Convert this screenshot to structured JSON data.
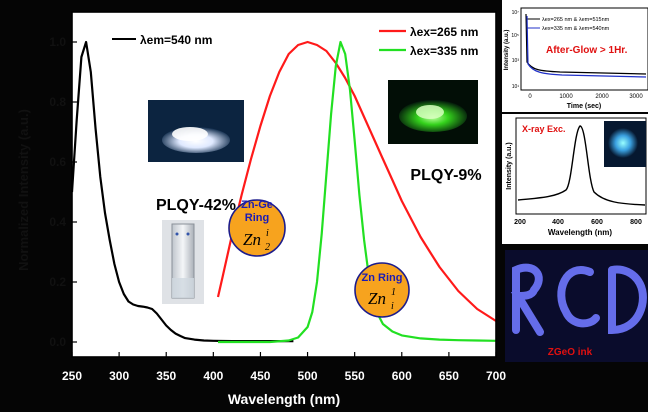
{
  "colors": {
    "frame": "#050505",
    "plot_bg": "#ffffff",
    "black_series": "#000000",
    "red_series": "#ff1a1a",
    "green_series": "#22e022",
    "circle_fill": "#f7a31e",
    "label_blue": "#1c1cb4",
    "afterglow_red": "#e01010",
    "xray_bg": "#1a66c8"
  },
  "icons": {
    "sample_photo_left": "white-powder-photo",
    "sample_photo_right": "green-powder-photo",
    "cuvette_photo": "cuvette-photo",
    "ink_photo": "blue-ink-letters-photo",
    "xray_glow": "blue-glow-photo"
  },
  "main": {
    "annotations": {
      "plqy_left": "PLQY-42%",
      "plqy_right": "PLQY-9%",
      "znge_line1": "Zn-Ge",
      "znge_line2": "Ring",
      "zn_ring": "Zn Ring"
    },
    "legend": {
      "black": "λem=540 nm",
      "red": "λex=265 nm",
      "green": "λex=335 nm"
    }
  },
  "inset_afterglow": {
    "legend": [
      "λex=265 nm & λem=515nm",
      "λex=335 nm & λem=540nm"
    ],
    "annotation": "After-Glow > 1Hr.",
    "ylabel": "Intensity (a.u.)",
    "xlabel": "Time (sec)",
    "xticks": [
      "0",
      "1000",
      "2000",
      "3000"
    ],
    "yticks": [
      "10⁷",
      "10⁵",
      "10³",
      "10¹"
    ]
  },
  "inset_xray": {
    "annotation": "X-ray Exc.",
    "ylabel": "Intensity (a.u.)",
    "xlabel": "Wavelength (nm)",
    "xticks": [
      "200",
      "400",
      "600",
      "800"
    ]
  },
  "inset_ink": {
    "caption": "ZGeO ink"
  },
  "chart_data": {
    "type": "line",
    "xlabel": "Wavelength (nm)",
    "ylabel": "Normalized Intensity (a.u.)",
    "xlim": [
      250,
      700
    ],
    "ylim": [
      -0.05,
      1.1
    ],
    "xticks": [
      250,
      300,
      350,
      400,
      450,
      500,
      550,
      600,
      650,
      700
    ],
    "yticks": [
      0.0,
      0.2,
      0.4,
      0.6,
      0.8,
      1.0
    ],
    "grid": false,
    "legend_placement": "top",
    "series": [
      {
        "name": "λem=540 nm",
        "color": "#000000",
        "x": [
          250,
          255,
          260,
          265,
          270,
          275,
          280,
          285,
          290,
          295,
          300,
          305,
          310,
          315,
          320,
          325,
          330,
          335,
          340,
          345,
          350,
          355,
          360,
          365,
          370,
          380,
          390,
          400,
          420,
          440,
          460,
          480,
          485
        ],
        "y": [
          0.5,
          0.74,
          0.95,
          1.0,
          0.9,
          0.71,
          0.55,
          0.43,
          0.34,
          0.26,
          0.2,
          0.16,
          0.135,
          0.125,
          0.12,
          0.118,
          0.115,
          0.11,
          0.095,
          0.075,
          0.055,
          0.04,
          0.028,
          0.02,
          0.013,
          0.008,
          0.005,
          0.004,
          0.003,
          0.003,
          0.003,
          0.003,
          0.003
        ]
      },
      {
        "name": "λex=265 nm",
        "color": "#ff1a1a",
        "x": [
          405,
          410,
          420,
          430,
          440,
          450,
          460,
          470,
          480,
          490,
          500,
          510,
          520,
          530,
          540,
          550,
          560,
          570,
          580,
          590,
          600,
          610,
          620,
          630,
          640,
          650,
          660,
          670,
          680,
          690,
          700
        ],
        "y": [
          0.15,
          0.22,
          0.36,
          0.49,
          0.61,
          0.72,
          0.82,
          0.9,
          0.96,
          0.99,
          1.0,
          0.99,
          0.97,
          0.93,
          0.88,
          0.82,
          0.75,
          0.68,
          0.61,
          0.54,
          0.47,
          0.41,
          0.35,
          0.3,
          0.25,
          0.21,
          0.17,
          0.14,
          0.11,
          0.09,
          0.07
        ]
      },
      {
        "name": "λex=335 nm",
        "color": "#22e022",
        "x": [
          405,
          420,
          440,
          460,
          480,
          490,
          500,
          505,
          510,
          515,
          520,
          525,
          530,
          535,
          540,
          545,
          550,
          555,
          560,
          565,
          570,
          575,
          580,
          590,
          600,
          620,
          640,
          660,
          680,
          700
        ],
        "y": [
          0.0,
          0.0,
          0.0,
          0.0,
          0.005,
          0.015,
          0.05,
          0.1,
          0.2,
          0.36,
          0.56,
          0.76,
          0.92,
          1.0,
          0.96,
          0.84,
          0.67,
          0.49,
          0.34,
          0.22,
          0.14,
          0.09,
          0.06,
          0.035,
          0.022,
          0.012,
          0.008,
          0.006,
          0.005,
          0.004
        ]
      }
    ]
  }
}
